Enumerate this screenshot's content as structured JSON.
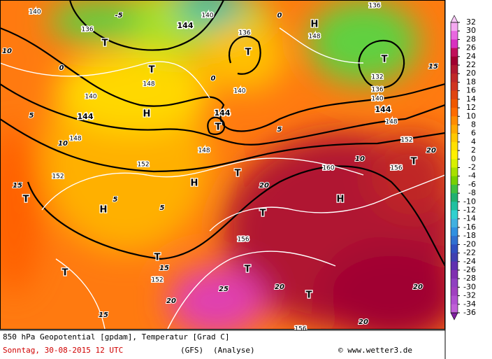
{
  "map": {
    "labels": [
      "140",
      "136",
      "T",
      "144",
      "140",
      "136",
      "T",
      "H",
      "148",
      "136",
      "T",
      "132",
      "136",
      "140",
      "144",
      "148",
      "152",
      "148",
      "T",
      "H",
      "140",
      "144",
      "148",
      "152",
      "152",
      "T",
      "H",
      "H",
      "T",
      "T",
      "144",
      "140",
      "148",
      "160",
      "156",
      "T",
      "H",
      "T",
      "156",
      "T",
      "T",
      "152",
      "T",
      "T",
      "156",
      "10",
      "15",
      "10",
      "5",
      "5",
      "15",
      "15",
      "20",
      "25",
      "20",
      "20",
      "20",
      "20",
      "20",
      "15",
      "10",
      "5",
      "0",
      "0",
      "-5",
      "0",
      "5"
    ]
  },
  "legend": {
    "ticks": [
      32,
      30,
      28,
      26,
      24,
      22,
      20,
      18,
      16,
      14,
      12,
      10,
      8,
      6,
      4,
      2,
      0,
      -2,
      -4,
      -6,
      -8,
      -10,
      -12,
      -14,
      -16,
      -18,
      -20,
      -22,
      -24,
      -26,
      -28,
      -30,
      -32,
      -34,
      -36
    ]
  },
  "footer": {
    "line1": "850 hPa Geopotential [gpdam], Temperatur [Grad C]",
    "date": "Sonntag, 30-08-2015  12 UTC",
    "model": "(GFS)",
    "analysis": "(Analyse)",
    "copyright": "© www.wetter3.de"
  }
}
